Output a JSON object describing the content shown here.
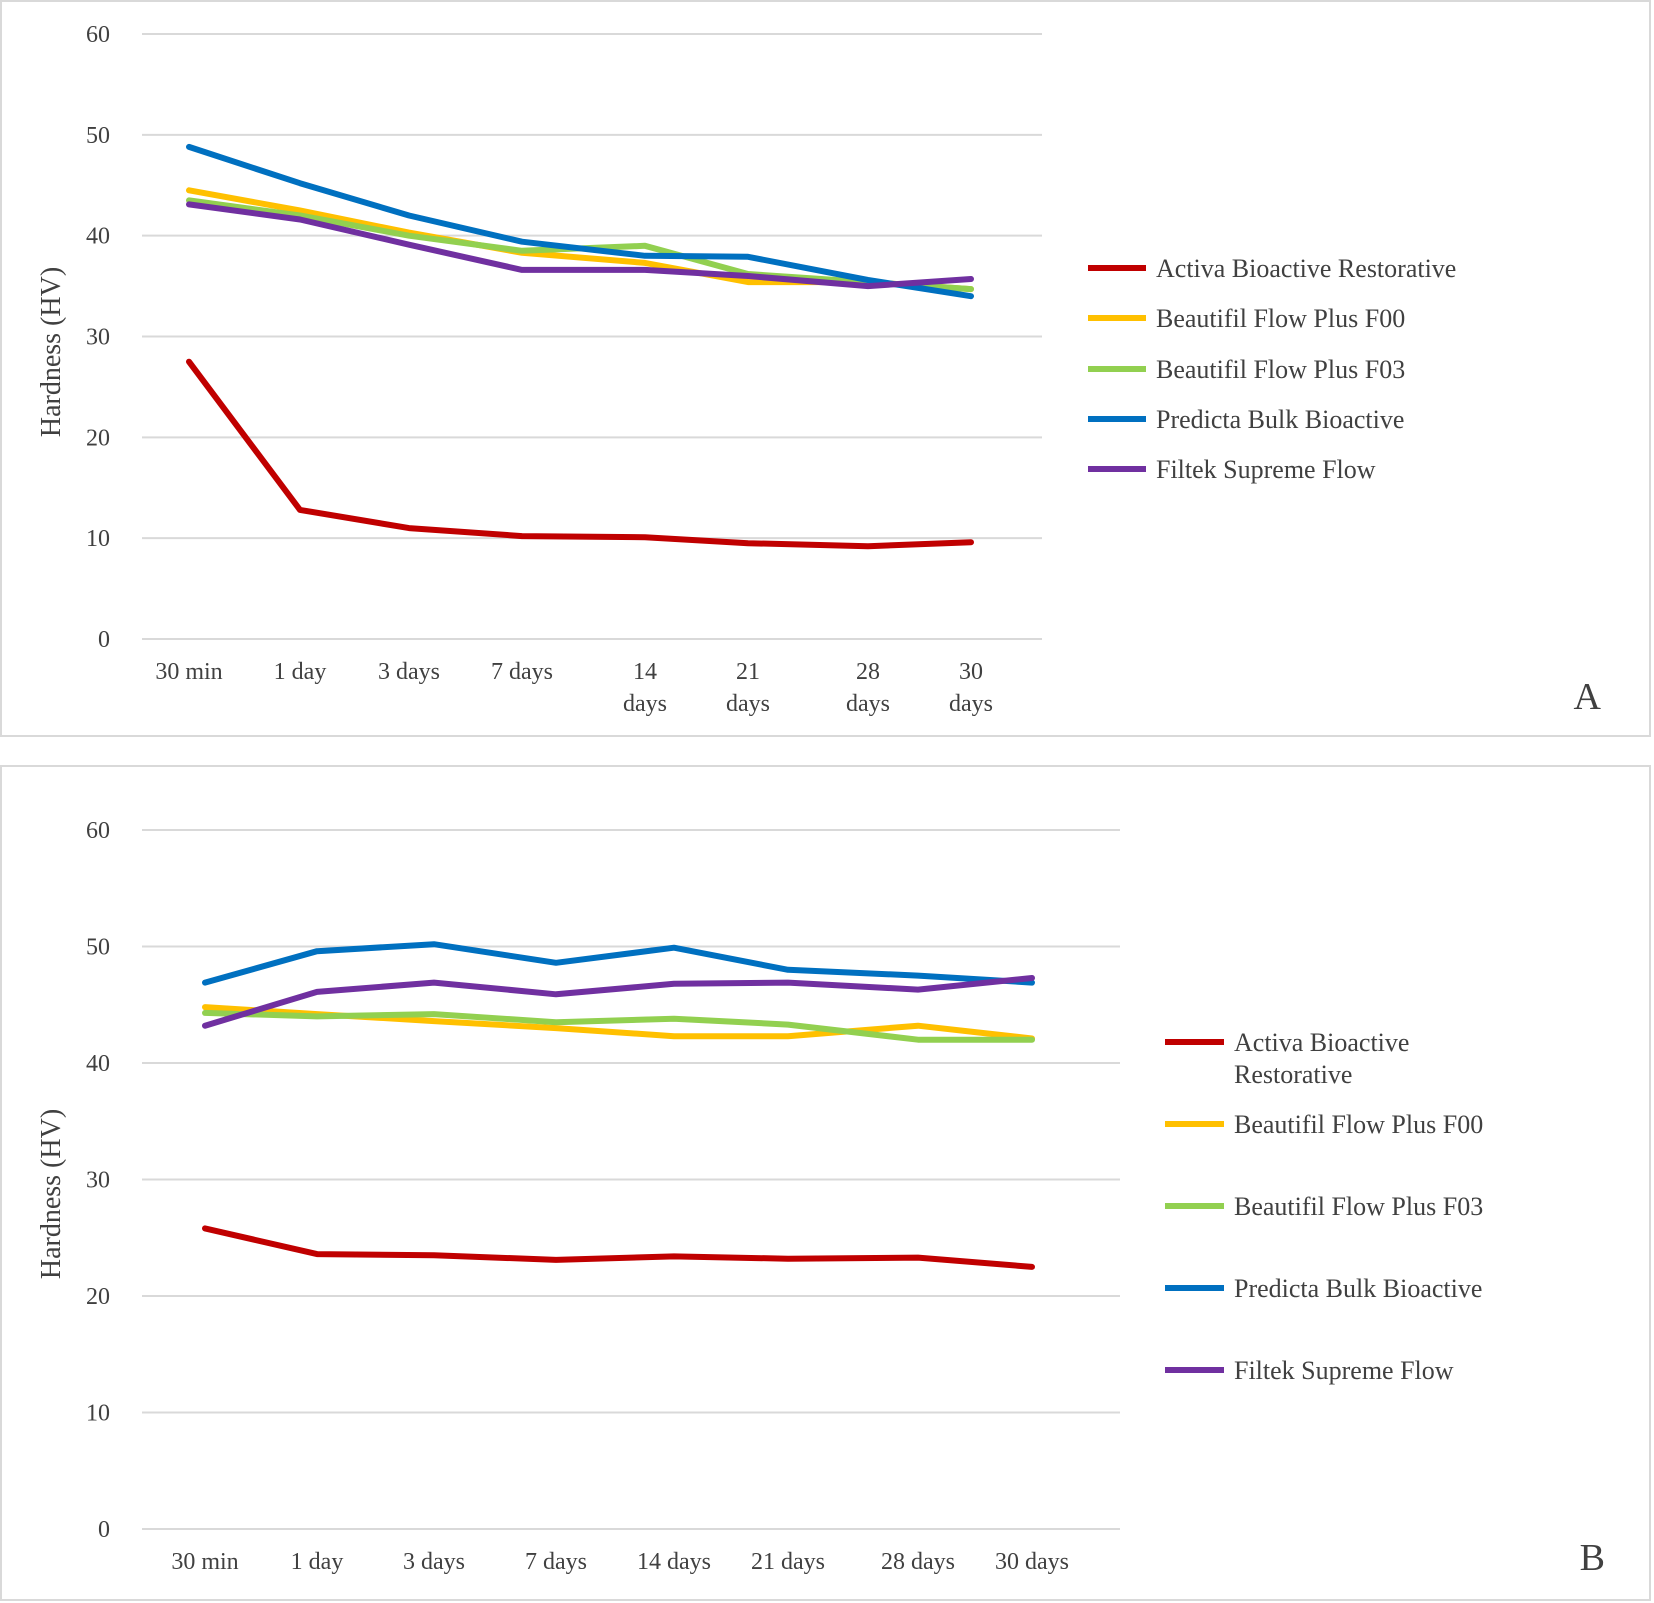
{
  "chart_data": [
    {
      "type": "line",
      "panel_label": "A",
      "ylabel": "Hardness (HV)",
      "xlabel": "",
      "ylim": [
        0,
        60
      ],
      "yticks": [
        "0",
        "10",
        "20",
        "30",
        "40",
        "50",
        "60"
      ],
      "grid": true,
      "legend_position": "right",
      "categories": [
        [
          "30 min"
        ],
        [
          "1 day"
        ],
        [
          "3 days"
        ],
        [
          "7 days"
        ],
        [
          "14",
          "days"
        ],
        [
          "21",
          "days"
        ],
        [
          "28",
          "days"
        ],
        [
          "30",
          "days"
        ]
      ],
      "series": [
        {
          "name": "Activa Bioactive Restorative",
          "color": "#c00000",
          "values": [
            27.5,
            12.8,
            11.0,
            10.2,
            10.1,
            9.5,
            9.2,
            9.6
          ]
        },
        {
          "name": "Beautifil Flow Plus F00",
          "color": "#ffc000",
          "values": [
            44.5,
            42.5,
            40.3,
            38.3,
            37.3,
            35.4,
            35.4,
            34.7
          ]
        },
        {
          "name": "Beautifil Flow Plus F03",
          "color": "#92d050",
          "values": [
            43.5,
            42.0,
            40.0,
            38.5,
            39.0,
            36.2,
            35.4,
            34.7
          ]
        },
        {
          "name": "Predicta Bulk Bioactive",
          "color": "#0070c0",
          "values": [
            48.8,
            45.2,
            42.0,
            39.4,
            38.0,
            37.9,
            35.6,
            34.0
          ]
        },
        {
          "name": "Filtek Supreme Flow",
          "color": "#7030a0",
          "values": [
            43.1,
            41.6,
            39.1,
            36.6,
            36.6,
            36.0,
            35.0,
            35.7
          ]
        }
      ]
    },
    {
      "type": "line",
      "panel_label": "B",
      "ylabel": "Hardness (HV)",
      "xlabel": "",
      "ylim": [
        0,
        60
      ],
      "yticks": [
        "0",
        "10",
        "20",
        "30",
        "40",
        "50",
        "60"
      ],
      "grid": true,
      "legend_position": "right",
      "categories": [
        [
          "30 min"
        ],
        [
          "1 day"
        ],
        [
          "3 days"
        ],
        [
          "7 days"
        ],
        [
          "14 days"
        ],
        [
          "21 days"
        ],
        [
          "28 days"
        ],
        [
          "30 days"
        ]
      ],
      "series": [
        {
          "name": "Activa Bioactive Restorative",
          "legend_lines": [
            "Activa Bioactive",
            "Restorative"
          ],
          "color": "#c00000",
          "values": [
            25.8,
            23.6,
            23.5,
            23.1,
            23.4,
            23.2,
            23.3,
            22.5
          ]
        },
        {
          "name": "Beautifil Flow Plus F00",
          "legend_lines": [
            "Beautifil Flow Plus F00"
          ],
          "color": "#ffc000",
          "values": [
            44.8,
            44.2,
            43.6,
            43.0,
            42.3,
            42.3,
            43.2,
            42.1
          ]
        },
        {
          "name": "Beautifil Flow Plus F03",
          "legend_lines": [
            "Beautifil Flow Plus F03"
          ],
          "color": "#92d050",
          "values": [
            44.3,
            44.0,
            44.2,
            43.5,
            43.8,
            43.3,
            42.0,
            42.0
          ]
        },
        {
          "name": "Predicta Bulk Bioactive",
          "legend_lines": [
            "Predicta Bulk Bioactive"
          ],
          "color": "#0070c0",
          "values": [
            46.9,
            49.6,
            50.2,
            48.6,
            49.9,
            48.0,
            47.5,
            46.9
          ]
        },
        {
          "name": "Filtek Supreme Flow",
          "legend_lines": [
            "Filtek Supreme Flow"
          ],
          "color": "#7030a0",
          "values": [
            43.2,
            46.1,
            46.9,
            45.9,
            46.8,
            46.9,
            46.3,
            47.3
          ]
        }
      ]
    }
  ]
}
